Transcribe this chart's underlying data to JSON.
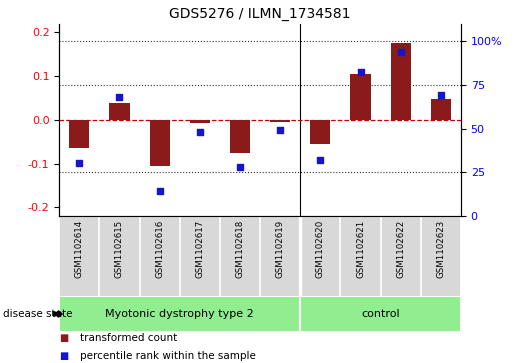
{
  "title": "GDS5276 / ILMN_1734581",
  "samples": [
    "GSM1102614",
    "GSM1102615",
    "GSM1102616",
    "GSM1102617",
    "GSM1102618",
    "GSM1102619",
    "GSM1102620",
    "GSM1102621",
    "GSM1102622",
    "GSM1102623"
  ],
  "bar_values": [
    -0.065,
    0.038,
    -0.105,
    -0.008,
    -0.075,
    -0.005,
    -0.055,
    0.105,
    0.175,
    0.048
  ],
  "dot_values_pct": [
    30.5,
    68.0,
    14.5,
    48.0,
    28.0,
    49.0,
    32.0,
    82.5,
    93.5,
    69.0
  ],
  "bar_color": "#8B1A1A",
  "dot_color": "#1515CC",
  "ylim_left": [
    -0.22,
    0.22
  ],
  "ylim_right": [
    0,
    110
  ],
  "yticks_left": [
    -0.2,
    -0.1,
    0.0,
    0.1,
    0.2
  ],
  "yticks_right": [
    0,
    25,
    50,
    75,
    100
  ],
  "ytick_right_labels": [
    "0",
    "25",
    "50",
    "75",
    "100%"
  ],
  "groups": [
    {
      "label": "Myotonic dystrophy type 2",
      "start": 0,
      "end": 5,
      "color": "#90EE90"
    },
    {
      "label": "control",
      "start": 6,
      "end": 9,
      "color": "#90EE90"
    }
  ],
  "disease_state_label": "disease state",
  "legend_bar_label": "transformed count",
  "legend_dot_label": "percentile rank within the sample",
  "hline_color": "#CC0000",
  "grid_color": "#333333",
  "sample_bg_color": "#D8D8D8",
  "plot_bg": "white"
}
